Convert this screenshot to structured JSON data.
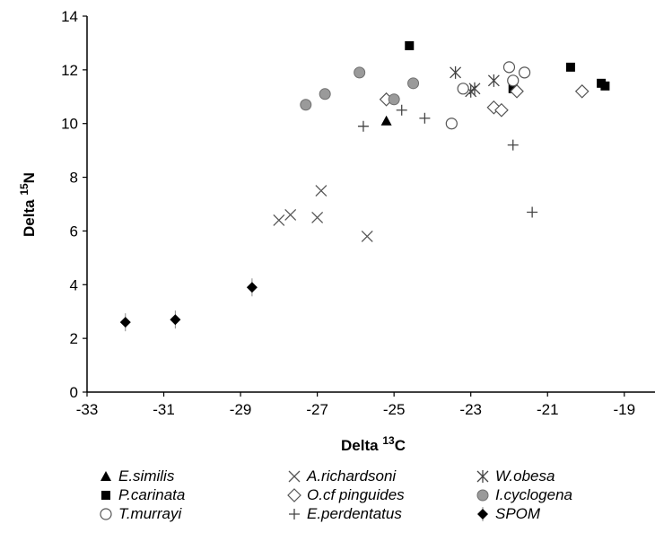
{
  "chart_data": {
    "type": "scatter",
    "xlabel": "Delta",
    "xlabel_sup": "13",
    "xlabel_tail": "C",
    "ylabel": "Delta",
    "ylabel_sup": "15",
    "ylabel_tail": "N",
    "xlim": [
      -33,
      -18.2
    ],
    "ylim": [
      0,
      14
    ],
    "xticks": [
      -33,
      -31,
      -29,
      -27,
      -25,
      -23,
      -21,
      -19
    ],
    "yticks": [
      0,
      2,
      4,
      6,
      8,
      10,
      12,
      14
    ],
    "grid": false,
    "legend_position": "bottom",
    "series": [
      {
        "name": "E.similis",
        "marker": "filled-triangle",
        "points": [
          [
            -25.2,
            10.1
          ]
        ]
      },
      {
        "name": "A.richardsoni",
        "marker": "x",
        "points": [
          [
            -28.0,
            6.4
          ],
          [
            -27.7,
            6.6
          ],
          [
            -27.0,
            6.5
          ],
          [
            -26.9,
            7.5
          ],
          [
            -25.7,
            5.8
          ]
        ]
      },
      {
        "name": "W.obesa",
        "marker": "asterisk",
        "points": [
          [
            -23.4,
            11.9
          ],
          [
            -23.0,
            11.2
          ],
          [
            -22.9,
            11.3
          ],
          [
            -22.4,
            11.6
          ]
        ]
      },
      {
        "name": "P.carinata",
        "marker": "filled-square",
        "points": [
          [
            -24.6,
            12.9
          ],
          [
            -21.9,
            11.3
          ],
          [
            -20.4,
            12.1
          ],
          [
            -19.6,
            11.5
          ],
          [
            -19.5,
            11.4
          ]
        ]
      },
      {
        "name": "O.cf pinguides",
        "marker": "open-diamond",
        "points": [
          [
            -25.2,
            10.9
          ],
          [
            -22.4,
            10.6
          ],
          [
            -22.2,
            10.5
          ],
          [
            -21.8,
            11.2
          ],
          [
            -20.1,
            11.2
          ]
        ]
      },
      {
        "name": "I.cyclogena",
        "marker": "grey-circle",
        "points": [
          [
            -27.3,
            10.7
          ],
          [
            -26.8,
            11.1
          ],
          [
            -25.9,
            11.9
          ],
          [
            -25.0,
            10.9
          ],
          [
            -24.5,
            11.5
          ]
        ]
      },
      {
        "name": "T.murrayi",
        "marker": "open-circle",
        "points": [
          [
            -23.5,
            10.0
          ],
          [
            -23.2,
            11.3
          ],
          [
            -22.0,
            12.1
          ],
          [
            -21.9,
            11.6
          ],
          [
            -21.6,
            11.9
          ]
        ]
      },
      {
        "name": "E.perdentatus",
        "marker": "plus",
        "points": [
          [
            -25.8,
            9.9
          ],
          [
            -24.8,
            10.5
          ],
          [
            -24.2,
            10.2
          ],
          [
            -21.9,
            9.2
          ],
          [
            -21.4,
            6.7
          ]
        ]
      },
      {
        "name": "SPOM",
        "marker": "filled-diamond",
        "points": [
          [
            -32.0,
            2.6
          ],
          [
            -30.7,
            2.7
          ],
          [
            -28.7,
            3.9
          ]
        ]
      }
    ]
  }
}
